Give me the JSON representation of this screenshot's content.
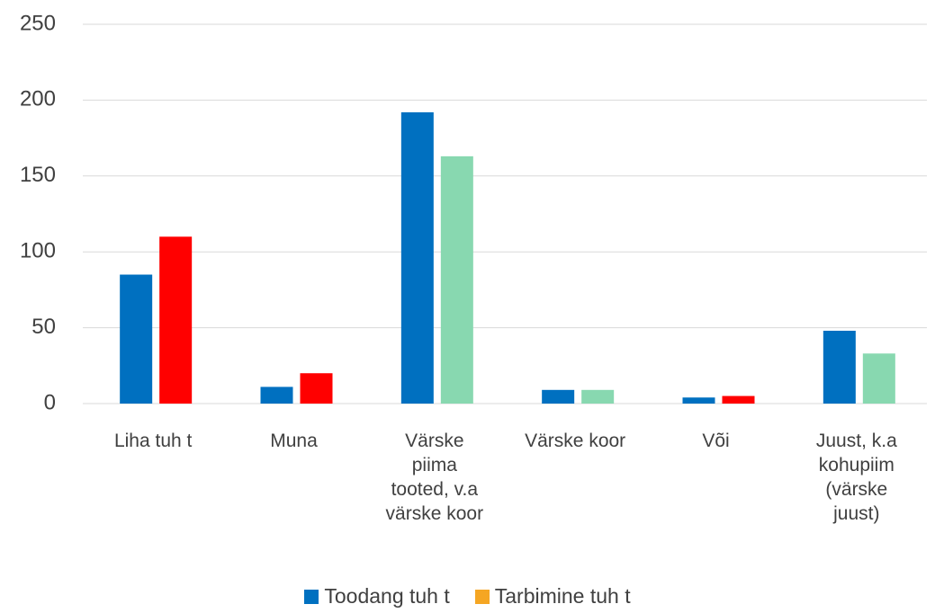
{
  "chart_data": {
    "type": "bar",
    "categories": [
      "Liha tuh t",
      "Muna",
      "Värske piima tooted, v.a värske koor",
      "Värske koor",
      "Või",
      "Juust, k.a kohupiim (värske juust)"
    ],
    "series": [
      {
        "name": "Toodang tuh t",
        "color": "#0070c0",
        "values": [
          85,
          11,
          192,
          9,
          4,
          48
        ]
      },
      {
        "name": "Tarbimine tuh t",
        "color": "#f5a623",
        "colors": [
          "#ff0000",
          "#ff0000",
          "#88d8b0",
          "#88d8b0",
          "#ff0000",
          "#88d8b0"
        ],
        "values": [
          110,
          20,
          163,
          9,
          5,
          33
        ]
      }
    ],
    "ylim": [
      0,
      250
    ],
    "yticks": [
      0,
      50,
      100,
      150,
      200,
      250
    ],
    "grid": true,
    "legend": "bottom"
  }
}
